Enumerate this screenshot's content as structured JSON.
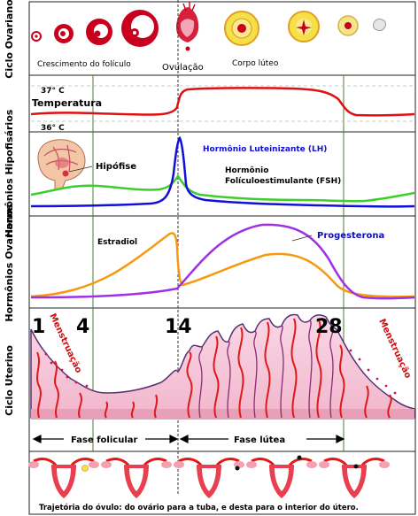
{
  "rows": {
    "ovarian_cycle": "Ciclo Ovariano",
    "hypophyseal_hormones": "Hormônios Hipofisários",
    "ovarian_hormones": "Hormônios Ovarianos",
    "uterine_cycle": "Ciclo Uterino"
  },
  "follicle_labels": {
    "growth": "Crescimento do folículo",
    "ovulation": "Ovulação",
    "corpus_luteum": "Corpo lúteo"
  },
  "temperature": {
    "label": "Temperatura",
    "high": "37° C",
    "low": "36° C"
  },
  "hypophyseal": {
    "gland": "Hipófise",
    "lh": "Hormônio Luteinizante (LH)",
    "fsh_line1": "Hormônio",
    "fsh_line2": "Folículoestimulante (FSH)"
  },
  "ovarian": {
    "estradiol": "Estradiol",
    "progesterone": "Progesterona"
  },
  "uterine": {
    "day_1": "1",
    "day_4": "4",
    "day_14": "14",
    "day_28": "28",
    "menstruation_left": "Menstruação",
    "menstruation_right": "Menstruação",
    "follicular_phase": "Fase folicular",
    "luteal_phase": "Fase lútea"
  },
  "footer": "Trajetória do óvulo: do ovário para a tuba, e desta para o interior do útero.",
  "colors": {
    "temperature": "#e01010",
    "lh": "#1010d8",
    "fsh": "#3ccf2a",
    "estradiol": "#f59a10",
    "progesterone": "#a030e8",
    "endometrium": "#f7cfe0",
    "vessel": "#e01818",
    "follicle": "#c8001e",
    "corpus_luteum": "#f5e04a"
  }
}
